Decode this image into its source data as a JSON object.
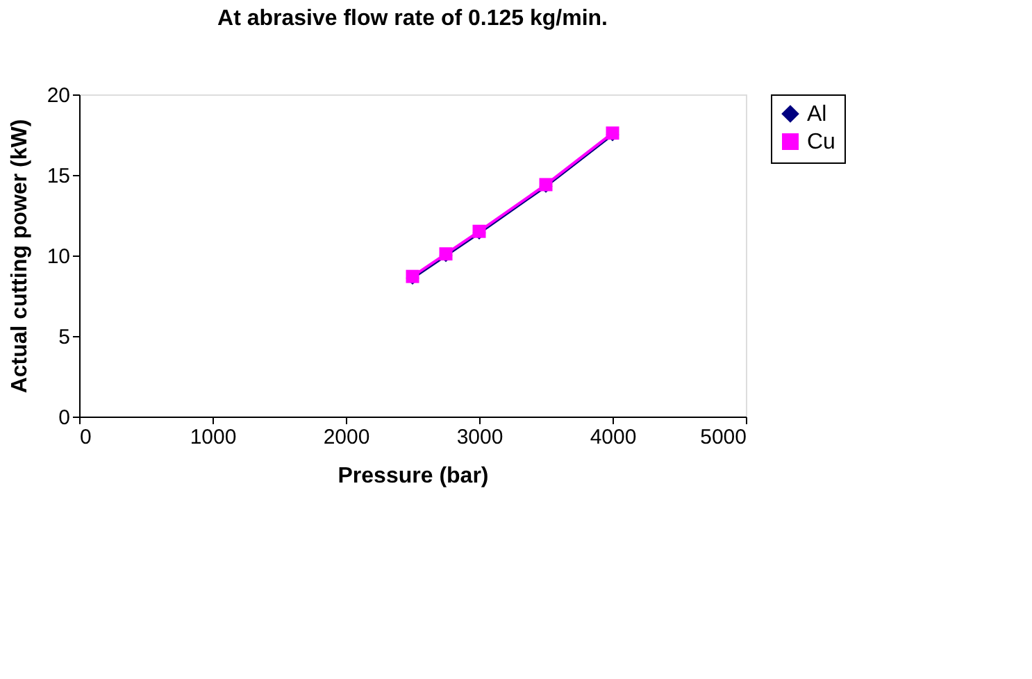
{
  "chart_data": {
    "type": "line",
    "title": "At abrasive flow rate of 0.125 kg/min.",
    "xlabel": "Pressure (bar)",
    "ylabel": "Actual cutting power (kW)",
    "x": [
      2500,
      2750,
      3000,
      3500,
      4000
    ],
    "series": [
      {
        "name": "Al",
        "color": "#000080",
        "marker": "diamond",
        "values": [
          8.6,
          10.0,
          11.4,
          14.3,
          17.5
        ]
      },
      {
        "name": "Cu",
        "color": "#ff00ff",
        "marker": "square",
        "values": [
          8.7,
          10.1,
          11.5,
          14.4,
          17.6
        ]
      }
    ],
    "xlim": [
      0,
      5000
    ],
    "xticks": [
      0,
      1000,
      2000,
      3000,
      4000,
      5000
    ],
    "ylim": [
      0,
      20
    ],
    "yticks": [
      0,
      5,
      10,
      15,
      20
    ],
    "grid": false,
    "legend": "right",
    "line_style": "solid"
  }
}
